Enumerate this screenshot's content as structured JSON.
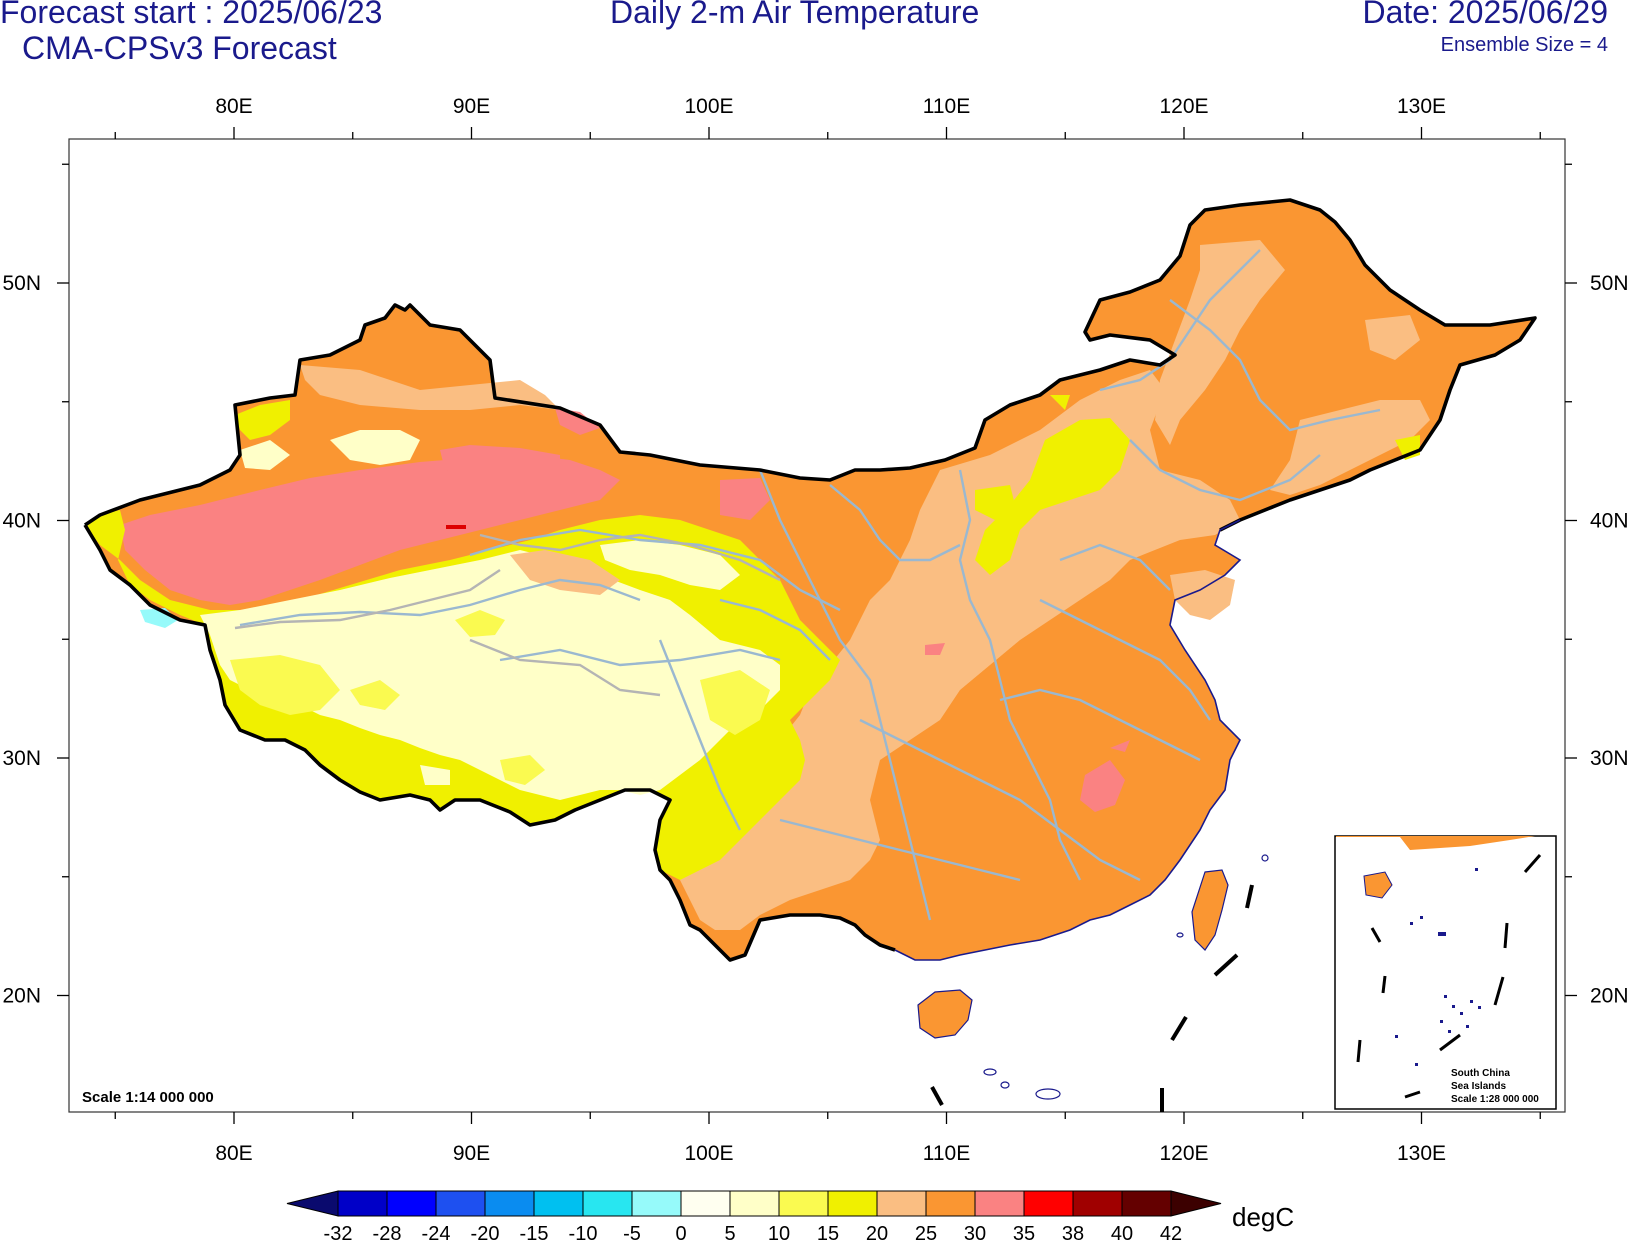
{
  "header": {
    "forecast_start": "Forecast start : 2025/06/23",
    "model": "CMA-CPSv3 Forecast",
    "title": "Daily 2-m Air Temperature",
    "date": "Date: 2025/06/29",
    "ensemble": "Ensemble Size = 4"
  },
  "map": {
    "lon_ticks": [
      "80E",
      "90E",
      "100E",
      "110E",
      "120E",
      "130E"
    ],
    "lat_ticks": [
      "50N",
      "40N",
      "30N",
      "20N"
    ],
    "scale_text": "Scale 1:14 000 000",
    "inset": {
      "line1": "South China",
      "line2": "Sea Islands",
      "line3": "Scale 1:28 000 000"
    }
  },
  "colorbar": {
    "unit": "degC",
    "labels": [
      "-32",
      "-28",
      "-24",
      "-20",
      "-15",
      "-10",
      "-5",
      "0",
      "5",
      "10",
      "15",
      "20",
      "25",
      "30",
      "35",
      "38",
      "40",
      "42"
    ],
    "colors": [
      "#0a0a6e",
      "#0000c8",
      "#0000ff",
      "#1e50f0",
      "#0a8cf0",
      "#00c0f0",
      "#28e6f0",
      "#96fafa",
      "#fffff0",
      "#ffffc8",
      "#fafa50",
      "#f0f000",
      "#fabe82",
      "#fa9632",
      "#fa8282",
      "#ff0000",
      "#a00000",
      "#640000",
      "#3c0000"
    ]
  },
  "colors": {
    "title": "#1a1a8c",
    "border": "#000000",
    "province_lines": "#9ab8d0",
    "coast": "#1a1a8c"
  }
}
